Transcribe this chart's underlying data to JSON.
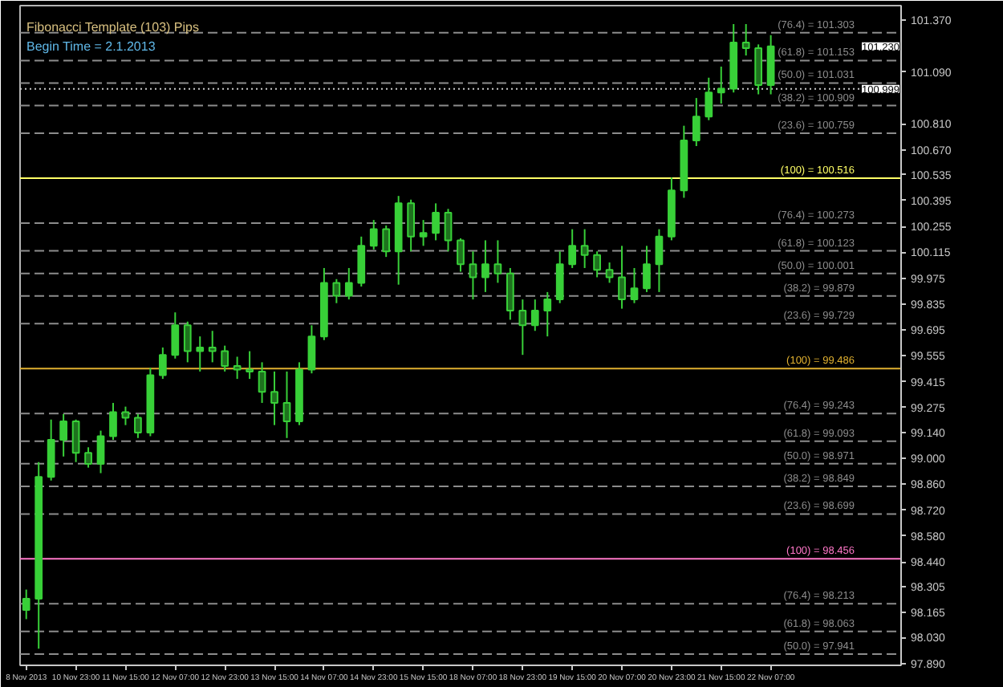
{
  "chart_data": {
    "type": "candlestick",
    "title": "Fibonacci Template (103) Pips",
    "subtitle": "Begin Time = 2.1.2013",
    "color": "#38d038",
    "categories": [
      "8 Nov 2013",
      null,
      null,
      null,
      "10 Nov 23:00",
      null,
      null,
      null,
      "11 Nov 15:00",
      null,
      null,
      null,
      "12 Nov 07:00",
      null,
      null,
      null,
      "12 Nov 23:00",
      null,
      null,
      null,
      "13 Nov 15:00",
      null,
      null,
      null,
      "14 Nov 07:00",
      null,
      null,
      null,
      "14 Nov 23:00",
      null,
      null,
      null,
      "15 Nov 15:00",
      null,
      null,
      null,
      "18 Nov 07:00",
      null,
      null,
      null,
      "18 Nov 23:00",
      null,
      null,
      null,
      "19 Nov 15:00",
      null,
      null,
      null,
      "20 Nov 07:00",
      null,
      null,
      null,
      "20 Nov 23:00",
      null,
      null,
      null,
      "21 Nov 15:00",
      null,
      null,
      null,
      "22 Nov 07:00",
      null,
      null,
      null,
      null,
      null,
      null,
      null,
      null,
      null,
      null
    ],
    "ohlc": [
      [
        98.18,
        98.29,
        98.13,
        98.24
      ],
      [
        98.24,
        98.98,
        97.97,
        98.9
      ],
      [
        98.9,
        99.21,
        98.88,
        99.1
      ],
      [
        99.1,
        99.24,
        99.01,
        99.2
      ],
      [
        99.2,
        99.21,
        98.98,
        99.03
      ],
      [
        99.03,
        99.06,
        98.95,
        98.97
      ],
      [
        98.97,
        99.15,
        98.92,
        99.12
      ],
      [
        99.12,
        99.3,
        99.1,
        99.25
      ],
      [
        99.25,
        99.28,
        99.18,
        99.22
      ],
      [
        99.22,
        99.24,
        99.11,
        99.14
      ],
      [
        99.14,
        99.49,
        99.12,
        99.45
      ],
      [
        99.45,
        99.6,
        99.43,
        99.56
      ],
      [
        99.56,
        99.79,
        99.54,
        99.72
      ],
      [
        99.72,
        99.74,
        99.52,
        99.58
      ],
      [
        99.58,
        99.66,
        99.47,
        99.6
      ],
      [
        99.6,
        99.69,
        99.52,
        99.58
      ],
      [
        99.58,
        99.61,
        99.47,
        99.5
      ],
      [
        99.5,
        99.55,
        99.43,
        99.48
      ],
      [
        99.48,
        99.58,
        99.43,
        99.47
      ],
      [
        99.47,
        99.52,
        99.3,
        99.36
      ],
      [
        99.36,
        99.47,
        99.18,
        99.3
      ],
      [
        99.3,
        99.47,
        99.11,
        99.2
      ],
      [
        99.2,
        99.52,
        99.18,
        99.48
      ],
      [
        99.48,
        99.72,
        99.46,
        99.66
      ],
      [
        99.66,
        100.03,
        99.64,
        99.95
      ],
      [
        99.95,
        99.97,
        99.84,
        99.88
      ],
      [
        99.88,
        100.03,
        99.86,
        99.95
      ],
      [
        99.95,
        100.2,
        99.93,
        100.15
      ],
      [
        100.15,
        100.29,
        100.13,
        100.24
      ],
      [
        100.24,
        100.26,
        100.09,
        100.12
      ],
      [
        100.12,
        100.42,
        99.94,
        100.38
      ],
      [
        100.38,
        100.4,
        100.12,
        100.2
      ],
      [
        100.2,
        100.29,
        100.15,
        100.22
      ],
      [
        100.22,
        100.38,
        100.18,
        100.33
      ],
      [
        100.33,
        100.35,
        100.12,
        100.18
      ],
      [
        100.18,
        100.19,
        100.01,
        100.05
      ],
      [
        100.05,
        100.12,
        99.86,
        99.98
      ],
      [
        99.98,
        100.18,
        99.9,
        100.05
      ],
      [
        100.05,
        100.18,
        99.95,
        100.0
      ],
      [
        100.0,
        100.03,
        99.75,
        99.8
      ],
      [
        99.8,
        99.86,
        99.56,
        99.72
      ],
      [
        99.72,
        99.86,
        99.69,
        99.8
      ],
      [
        99.8,
        99.9,
        99.66,
        99.86
      ],
      [
        99.86,
        100.12,
        99.84,
        100.05
      ],
      [
        100.05,
        100.24,
        100.03,
        100.15
      ],
      [
        100.15,
        100.24,
        100.03,
        100.1
      ],
      [
        100.1,
        100.12,
        99.98,
        100.02
      ],
      [
        100.02,
        100.06,
        99.95,
        99.98
      ],
      [
        99.98,
        100.15,
        99.81,
        99.86
      ],
      [
        99.86,
        100.03,
        99.84,
        99.92
      ],
      [
        99.92,
        100.15,
        99.9,
        100.05
      ],
      [
        100.05,
        100.24,
        99.9,
        100.2
      ],
      [
        100.2,
        100.52,
        100.18,
        100.45
      ],
      [
        100.45,
        100.8,
        100.41,
        100.72
      ],
      [
        100.72,
        100.95,
        100.69,
        100.85
      ],
      [
        100.85,
        101.06,
        100.83,
        100.98
      ],
      [
        100.98,
        101.12,
        100.92,
        101.0
      ],
      [
        101.0,
        101.35,
        100.98,
        101.25
      ],
      [
        101.25,
        101.35,
        101.18,
        101.22
      ],
      [
        101.22,
        101.24,
        100.97,
        101.02
      ],
      [
        101.02,
        101.29,
        100.97,
        101.23
      ],
      null,
      null,
      null,
      null,
      null,
      null,
      null,
      null,
      null,
      null
    ],
    "ylim": [
      97.88,
      101.45
    ],
    "yticks": [
      {
        "value": 101.37,
        "label": "101.370"
      },
      {
        "value": 101.09,
        "label": "101.090"
      },
      {
        "value": 100.81,
        "label": "100.810"
      },
      {
        "value": 100.67,
        "label": "100.670"
      },
      100.535,
      100.395,
      100.255,
      100.115,
      99.975,
      99.835,
      99.695,
      99.555,
      99.415,
      99.275,
      {
        "value": 99.14,
        "label": "99.140"
      },
      {
        "value": 99,
        "label": "99.000"
      },
      {
        "value": 98.86,
        "label": "98.860"
      },
      {
        "value": 98.72,
        "label": "98.720"
      },
      {
        "value": 98.58,
        "label": "98.580"
      },
      {
        "value": 98.44,
        "label": "98.440"
      },
      98.305,
      98.165,
      {
        "value": 98.03,
        "label": "98.030"
      },
      {
        "value": 97.89,
        "label": "97.890"
      }
    ],
    "ref_lines": [
      {
        "axis": "y",
        "value": 101.303,
        "label": "(76.4) = 101.303",
        "color": "#8c8c8c",
        "line_style": "dashed"
      },
      {
        "axis": "y",
        "value": 101.153,
        "label": "(61.8) = 101.153",
        "color": "#8c8c8c",
        "line_style": "dashed"
      },
      {
        "axis": "y",
        "value": 101.031,
        "label": "(50.0) = 101.031",
        "color": "#8c8c8c",
        "line_style": "dashed"
      },
      {
        "axis": "y",
        "value": 100.909,
        "label": "(38.2) = 100.909",
        "color": "#8c8c8c",
        "line_style": "dashed"
      },
      {
        "axis": "y",
        "value": 100.759,
        "label": "(23.6) = 100.759",
        "color": "#8c8c8c",
        "line_style": "dashed"
      },
      {
        "axis": "y",
        "value": 100.516,
        "label": "(100) = 100.516",
        "color": "#ffff66",
        "line_style": "solid"
      },
      {
        "axis": "y",
        "value": 100.273,
        "label": "(76.4) = 100.273",
        "color": "#8c8c8c",
        "line_style": "dashed"
      },
      {
        "axis": "y",
        "value": 100.123,
        "label": "(61.8) = 100.123",
        "color": "#8c8c8c",
        "line_style": "dashed"
      },
      {
        "axis": "y",
        "value": 100.001,
        "label": "(50.0) = 100.001",
        "color": "#8c8c8c",
        "line_style": "dashed"
      },
      {
        "axis": "y",
        "value": 99.879,
        "label": "(38.2) = 99.879",
        "color": "#8c8c8c",
        "line_style": "dashed"
      },
      {
        "axis": "y",
        "value": 99.729,
        "label": "(23.6) = 99.729",
        "color": "#8c8c8c",
        "line_style": "dashed"
      },
      {
        "axis": "y",
        "value": 99.486,
        "label": "(100) = 99.486",
        "color": "#e0b030",
        "line_style": "solid"
      },
      {
        "axis": "y",
        "value": 99.243,
        "label": "(76.4) = 99.243",
        "color": "#8c8c8c",
        "line_style": "dashed"
      },
      {
        "axis": "y",
        "value": 99.093,
        "label": "(61.8) = 99.093",
        "color": "#8c8c8c",
        "line_style": "dashed"
      },
      {
        "axis": "y",
        "value": 98.971,
        "label": "(50.0) = 98.971",
        "color": "#8c8c8c",
        "line_style": "dashed"
      },
      {
        "axis": "y",
        "value": 98.849,
        "label": "(38.2) = 98.849",
        "color": "#8c8c8c",
        "line_style": "dashed"
      },
      {
        "axis": "y",
        "value": 98.699,
        "label": "(23.6) = 98.699",
        "color": "#8c8c8c",
        "line_style": "dashed"
      },
      {
        "axis": "y",
        "value": 98.456,
        "label": "(100) = 98.456",
        "color": "#ff77c8",
        "line_style": "solid"
      },
      {
        "axis": "y",
        "value": 98.213,
        "label": "(76.4) = 98.213",
        "color": "#8c8c8c",
        "line_style": "dashed"
      },
      {
        "axis": "y",
        "value": 98.063,
        "label": "(61.8) = 98.063",
        "color": "#8c8c8c",
        "line_style": "dashed"
      },
      {
        "axis": "y",
        "value": 97.941,
        "label": "(50.0) = 97.941",
        "color": "#8c8c8c",
        "line_style": "dashed"
      },
      {
        "axis": "y",
        "value": 100.999,
        "label": "100.999",
        "color": "#c8c8c8",
        "line_style": "dotted"
      }
    ],
    "annotations": [
      "101.230"
    ]
  }
}
